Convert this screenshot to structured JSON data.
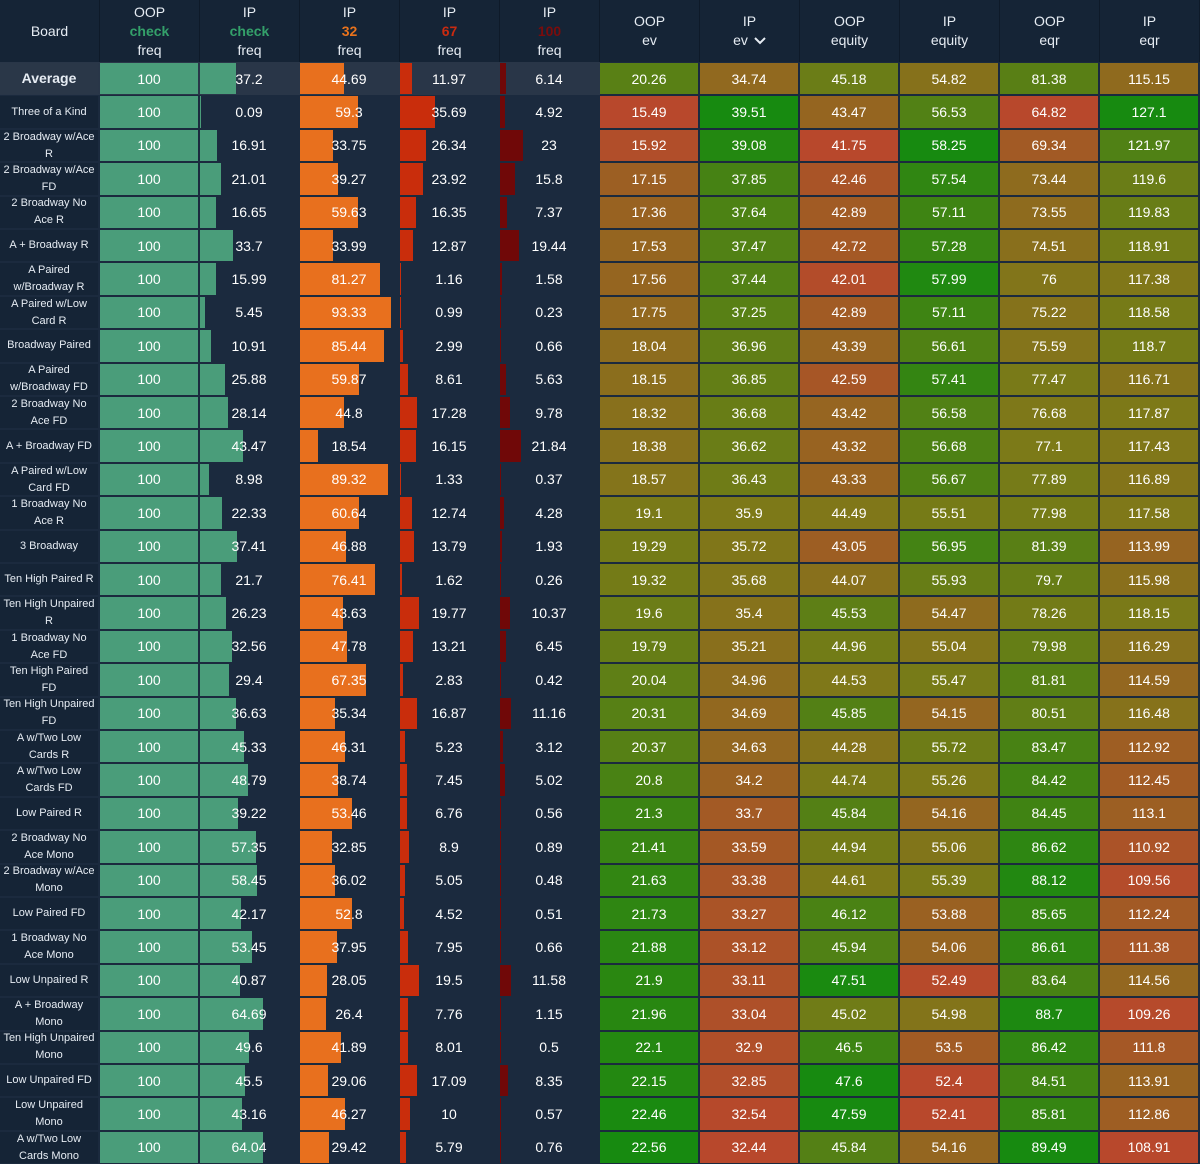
{
  "columns": [
    {
      "key": "board",
      "lines": [
        "Board"
      ]
    },
    {
      "key": "oop_check",
      "lines": [
        "OOP",
        "check",
        "freq"
      ],
      "action_color": "#34a06a"
    },
    {
      "key": "ip_check",
      "lines": [
        "IP",
        "check",
        "freq"
      ],
      "action_color": "#34a06a"
    },
    {
      "key": "ip_32",
      "lines": [
        "IP",
        "32",
        "freq"
      ],
      "action_color": "#e8721c"
    },
    {
      "key": "ip_67",
      "lines": [
        "IP",
        "67",
        "freq"
      ],
      "action_color": "#c92a10"
    },
    {
      "key": "ip_100",
      "lines": [
        "IP",
        "100",
        "freq"
      ],
      "action_color": "#7a0c0c"
    },
    {
      "key": "oop_ev",
      "lines": [
        "OOP",
        "ev"
      ]
    },
    {
      "key": "ip_ev",
      "lines": [
        "IP",
        "ev"
      ],
      "sorted": true,
      "sort_icon": "chevron-down-icon"
    },
    {
      "key": "oop_equity",
      "lines": [
        "OOP",
        "equity"
      ]
    },
    {
      "key": "ip_equity",
      "lines": [
        "IP",
        "equity"
      ]
    },
    {
      "key": "oop_eqr",
      "lines": [
        "OOP",
        "eqr"
      ]
    },
    {
      "key": "ip_eqr",
      "lines": [
        "IP",
        "eqr"
      ]
    }
  ],
  "colors": {
    "header_bg": "#152436",
    "row_bg": "#1b2a3e",
    "average_row_bg": "#293648",
    "check_bar": "#4a9d7a",
    "bet32_bar": "#e8701e",
    "bet67_bar": "#c92d0c",
    "bet100_bar": "#700808",
    "heat_low": "#b8482c",
    "heat_mid": "#7c7a18",
    "heat_high": "#178a10"
  },
  "rows": [
    {
      "board": "Average",
      "oop_check": "100",
      "ip_check": "37.2",
      "ip_32": "44.69",
      "ip_67": "11.97",
      "ip_100": "6.14",
      "oop_ev": "20.26",
      "ip_ev": "34.74",
      "oop_equity": "45.18",
      "ip_equity": "54.82",
      "oop_eqr": "81.38",
      "ip_eqr": "115.15"
    },
    {
      "board": "Three of a Kind",
      "oop_check": "100",
      "ip_check": "0.09",
      "ip_32": "59.3",
      "ip_67": "35.69",
      "ip_100": "4.92",
      "oop_ev": "15.49",
      "ip_ev": "39.51",
      "oop_equity": "43.47",
      "ip_equity": "56.53",
      "oop_eqr": "64.82",
      "ip_eqr": "127.1"
    },
    {
      "board": "2 Broadway w/Ace R",
      "oop_check": "100",
      "ip_check": "16.91",
      "ip_32": "33.75",
      "ip_67": "26.34",
      "ip_100": "23",
      "oop_ev": "15.92",
      "ip_ev": "39.08",
      "oop_equity": "41.75",
      "ip_equity": "58.25",
      "oop_eqr": "69.34",
      "ip_eqr": "121.97"
    },
    {
      "board": "2 Broadway w/Ace FD",
      "oop_check": "100",
      "ip_check": "21.01",
      "ip_32": "39.27",
      "ip_67": "23.92",
      "ip_100": "15.8",
      "oop_ev": "17.15",
      "ip_ev": "37.85",
      "oop_equity": "42.46",
      "ip_equity": "57.54",
      "oop_eqr": "73.44",
      "ip_eqr": "119.6"
    },
    {
      "board": "2 Broadway No Ace R",
      "oop_check": "100",
      "ip_check": "16.65",
      "ip_32": "59.63",
      "ip_67": "16.35",
      "ip_100": "7.37",
      "oop_ev": "17.36",
      "ip_ev": "37.64",
      "oop_equity": "42.89",
      "ip_equity": "57.11",
      "oop_eqr": "73.55",
      "ip_eqr": "119.83"
    },
    {
      "board": "A + Broadway R",
      "oop_check": "100",
      "ip_check": "33.7",
      "ip_32": "33.99",
      "ip_67": "12.87",
      "ip_100": "19.44",
      "oop_ev": "17.53",
      "ip_ev": "37.47",
      "oop_equity": "42.72",
      "ip_equity": "57.28",
      "oop_eqr": "74.51",
      "ip_eqr": "118.91"
    },
    {
      "board": "A Paired w/Broadway R",
      "oop_check": "100",
      "ip_check": "15.99",
      "ip_32": "81.27",
      "ip_67": "1.16",
      "ip_100": "1.58",
      "oop_ev": "17.56",
      "ip_ev": "37.44",
      "oop_equity": "42.01",
      "ip_equity": "57.99",
      "oop_eqr": "76",
      "ip_eqr": "117.38"
    },
    {
      "board": "A Paired w/Low Card R",
      "oop_check": "100",
      "ip_check": "5.45",
      "ip_32": "93.33",
      "ip_67": "0.99",
      "ip_100": "0.23",
      "oop_ev": "17.75",
      "ip_ev": "37.25",
      "oop_equity": "42.89",
      "ip_equity": "57.11",
      "oop_eqr": "75.22",
      "ip_eqr": "118.58"
    },
    {
      "board": "Broadway Paired",
      "oop_check": "100",
      "ip_check": "10.91",
      "ip_32": "85.44",
      "ip_67": "2.99",
      "ip_100": "0.66",
      "oop_ev": "18.04",
      "ip_ev": "36.96",
      "oop_equity": "43.39",
      "ip_equity": "56.61",
      "oop_eqr": "75.59",
      "ip_eqr": "118.7"
    },
    {
      "board": "A Paired w/Broadway FD",
      "oop_check": "100",
      "ip_check": "25.88",
      "ip_32": "59.87",
      "ip_67": "8.61",
      "ip_100": "5.63",
      "oop_ev": "18.15",
      "ip_ev": "36.85",
      "oop_equity": "42.59",
      "ip_equity": "57.41",
      "oop_eqr": "77.47",
      "ip_eqr": "116.71"
    },
    {
      "board": "2 Broadway No Ace FD",
      "oop_check": "100",
      "ip_check": "28.14",
      "ip_32": "44.8",
      "ip_67": "17.28",
      "ip_100": "9.78",
      "oop_ev": "18.32",
      "ip_ev": "36.68",
      "oop_equity": "43.42",
      "ip_equity": "56.58",
      "oop_eqr": "76.68",
      "ip_eqr": "117.87"
    },
    {
      "board": "A + Broadway FD",
      "oop_check": "100",
      "ip_check": "43.47",
      "ip_32": "18.54",
      "ip_67": "16.15",
      "ip_100": "21.84",
      "oop_ev": "18.38",
      "ip_ev": "36.62",
      "oop_equity": "43.32",
      "ip_equity": "56.68",
      "oop_eqr": "77.1",
      "ip_eqr": "117.43"
    },
    {
      "board": "A Paired w/Low Card FD",
      "oop_check": "100",
      "ip_check": "8.98",
      "ip_32": "89.32",
      "ip_67": "1.33",
      "ip_100": "0.37",
      "oop_ev": "18.57",
      "ip_ev": "36.43",
      "oop_equity": "43.33",
      "ip_equity": "56.67",
      "oop_eqr": "77.89",
      "ip_eqr": "116.89"
    },
    {
      "board": "1 Broadway No Ace R",
      "oop_check": "100",
      "ip_check": "22.33",
      "ip_32": "60.64",
      "ip_67": "12.74",
      "ip_100": "4.28",
      "oop_ev": "19.1",
      "ip_ev": "35.9",
      "oop_equity": "44.49",
      "ip_equity": "55.51",
      "oop_eqr": "77.98",
      "ip_eqr": "117.58"
    },
    {
      "board": "3 Broadway",
      "oop_check": "100",
      "ip_check": "37.41",
      "ip_32": "46.88",
      "ip_67": "13.79",
      "ip_100": "1.93",
      "oop_ev": "19.29",
      "ip_ev": "35.72",
      "oop_equity": "43.05",
      "ip_equity": "56.95",
      "oop_eqr": "81.39",
      "ip_eqr": "113.99"
    },
    {
      "board": "Ten High Paired R",
      "oop_check": "100",
      "ip_check": "21.7",
      "ip_32": "76.41",
      "ip_67": "1.62",
      "ip_100": "0.26",
      "oop_ev": "19.32",
      "ip_ev": "35.68",
      "oop_equity": "44.07",
      "ip_equity": "55.93",
      "oop_eqr": "79.7",
      "ip_eqr": "115.98"
    },
    {
      "board": "Ten High Unpaired R",
      "oop_check": "100",
      "ip_check": "26.23",
      "ip_32": "43.63",
      "ip_67": "19.77",
      "ip_100": "10.37",
      "oop_ev": "19.6",
      "ip_ev": "35.4",
      "oop_equity": "45.53",
      "ip_equity": "54.47",
      "oop_eqr": "78.26",
      "ip_eqr": "118.15"
    },
    {
      "board": "1 Broadway No Ace FD",
      "oop_check": "100",
      "ip_check": "32.56",
      "ip_32": "47.78",
      "ip_67": "13.21",
      "ip_100": "6.45",
      "oop_ev": "19.79",
      "ip_ev": "35.21",
      "oop_equity": "44.96",
      "ip_equity": "55.04",
      "oop_eqr": "79.98",
      "ip_eqr": "116.29"
    },
    {
      "board": "Ten High Paired FD",
      "oop_check": "100",
      "ip_check": "29.4",
      "ip_32": "67.35",
      "ip_67": "2.83",
      "ip_100": "0.42",
      "oop_ev": "20.04",
      "ip_ev": "34.96",
      "oop_equity": "44.53",
      "ip_equity": "55.47",
      "oop_eqr": "81.81",
      "ip_eqr": "114.59"
    },
    {
      "board": "Ten High Unpaired FD",
      "oop_check": "100",
      "ip_check": "36.63",
      "ip_32": "35.34",
      "ip_67": "16.87",
      "ip_100": "11.16",
      "oop_ev": "20.31",
      "ip_ev": "34.69",
      "oop_equity": "45.85",
      "ip_equity": "54.15",
      "oop_eqr": "80.51",
      "ip_eqr": "116.48"
    },
    {
      "board": "A w/Two Low Cards R",
      "oop_check": "100",
      "ip_check": "45.33",
      "ip_32": "46.31",
      "ip_67": "5.23",
      "ip_100": "3.12",
      "oop_ev": "20.37",
      "ip_ev": "34.63",
      "oop_equity": "44.28",
      "ip_equity": "55.72",
      "oop_eqr": "83.47",
      "ip_eqr": "112.92"
    },
    {
      "board": "A w/Two Low Cards FD",
      "oop_check": "100",
      "ip_check": "48.79",
      "ip_32": "38.74",
      "ip_67": "7.45",
      "ip_100": "5.02",
      "oop_ev": "20.8",
      "ip_ev": "34.2",
      "oop_equity": "44.74",
      "ip_equity": "55.26",
      "oop_eqr": "84.42",
      "ip_eqr": "112.45"
    },
    {
      "board": "Low Paired R",
      "oop_check": "100",
      "ip_check": "39.22",
      "ip_32": "53.46",
      "ip_67": "6.76",
      "ip_100": "0.56",
      "oop_ev": "21.3",
      "ip_ev": "33.7",
      "oop_equity": "45.84",
      "ip_equity": "54.16",
      "oop_eqr": "84.45",
      "ip_eqr": "113.1"
    },
    {
      "board": "2 Broadway No Ace Mono",
      "oop_check": "100",
      "ip_check": "57.35",
      "ip_32": "32.85",
      "ip_67": "8.9",
      "ip_100": "0.89",
      "oop_ev": "21.41",
      "ip_ev": "33.59",
      "oop_equity": "44.94",
      "ip_equity": "55.06",
      "oop_eqr": "86.62",
      "ip_eqr": "110.92"
    },
    {
      "board": "2 Broadway w/Ace Mono",
      "oop_check": "100",
      "ip_check": "58.45",
      "ip_32": "36.02",
      "ip_67": "5.05",
      "ip_100": "0.48",
      "oop_ev": "21.63",
      "ip_ev": "33.38",
      "oop_equity": "44.61",
      "ip_equity": "55.39",
      "oop_eqr": "88.12",
      "ip_eqr": "109.56"
    },
    {
      "board": "Low Paired FD",
      "oop_check": "100",
      "ip_check": "42.17",
      "ip_32": "52.8",
      "ip_67": "4.52",
      "ip_100": "0.51",
      "oop_ev": "21.73",
      "ip_ev": "33.27",
      "oop_equity": "46.12",
      "ip_equity": "53.88",
      "oop_eqr": "85.65",
      "ip_eqr": "112.24"
    },
    {
      "board": "1 Broadway No Ace Mono",
      "oop_check": "100",
      "ip_check": "53.45",
      "ip_32": "37.95",
      "ip_67": "7.95",
      "ip_100": "0.66",
      "oop_ev": "21.88",
      "ip_ev": "33.12",
      "oop_equity": "45.94",
      "ip_equity": "54.06",
      "oop_eqr": "86.61",
      "ip_eqr": "111.38"
    },
    {
      "board": "Low Unpaired R",
      "oop_check": "100",
      "ip_check": "40.87",
      "ip_32": "28.05",
      "ip_67": "19.5",
      "ip_100": "11.58",
      "oop_ev": "21.9",
      "ip_ev": "33.11",
      "oop_equity": "47.51",
      "ip_equity": "52.49",
      "oop_eqr": "83.64",
      "ip_eqr": "114.56"
    },
    {
      "board": "A + Broadway Mono",
      "oop_check": "100",
      "ip_check": "64.69",
      "ip_32": "26.4",
      "ip_67": "7.76",
      "ip_100": "1.15",
      "oop_ev": "21.96",
      "ip_ev": "33.04",
      "oop_equity": "45.02",
      "ip_equity": "54.98",
      "oop_eqr": "88.7",
      "ip_eqr": "109.26"
    },
    {
      "board": "Ten High Unpaired Mono",
      "oop_check": "100",
      "ip_check": "49.6",
      "ip_32": "41.89",
      "ip_67": "8.01",
      "ip_100": "0.5",
      "oop_ev": "22.1",
      "ip_ev": "32.9",
      "oop_equity": "46.5",
      "ip_equity": "53.5",
      "oop_eqr": "86.42",
      "ip_eqr": "111.8"
    },
    {
      "board": "Low Unpaired FD",
      "oop_check": "100",
      "ip_check": "45.5",
      "ip_32": "29.06",
      "ip_67": "17.09",
      "ip_100": "8.35",
      "oop_ev": "22.15",
      "ip_ev": "32.85",
      "oop_equity": "47.6",
      "ip_equity": "52.4",
      "oop_eqr": "84.51",
      "ip_eqr": "113.91"
    },
    {
      "board": "Low Unpaired Mono",
      "oop_check": "100",
      "ip_check": "43.16",
      "ip_32": "46.27",
      "ip_67": "10",
      "ip_100": "0.57",
      "oop_ev": "22.46",
      "ip_ev": "32.54",
      "oop_equity": "47.59",
      "ip_equity": "52.41",
      "oop_eqr": "85.81",
      "ip_eqr": "112.86"
    },
    {
      "board": "A w/Two Low Cards Mono",
      "oop_check": "100",
      "ip_check": "64.04",
      "ip_32": "29.42",
      "ip_67": "5.79",
      "ip_100": "0.76",
      "oop_ev": "22.56",
      "ip_ev": "32.44",
      "oop_equity": "45.84",
      "ip_equity": "54.16",
      "oop_eqr": "89.49",
      "ip_eqr": "108.91"
    }
  ]
}
